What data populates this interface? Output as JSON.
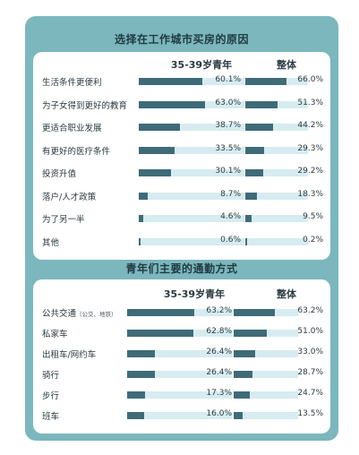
{
  "chart_data": [
    {
      "type": "bar",
      "title": "选择在工作城市买房的原因",
      "series": [
        {
          "name": "35-39岁青年",
          "values": [
            60.1,
            63.0,
            38.7,
            33.5,
            30.1,
            8.7,
            4.6,
            0.6
          ]
        },
        {
          "name": "整体",
          "values": [
            66.0,
            51.3,
            44.2,
            29.3,
            29.2,
            18.3,
            9.5,
            0.2
          ]
        }
      ],
      "categories": [
        "生活条件更便利",
        "为子女得到更好的教育",
        "更适合职业发展",
        "有更好的医疗条件",
        "投资升值",
        "落户/人才政策",
        "为了另一半",
        "其他"
      ],
      "value_labels": [
        [
          "60.1%",
          "63.0%",
          "38.7%",
          "33.5%",
          "30.1%",
          "8.7%",
          "4.6%",
          "0.6%"
        ],
        [
          "66.0%",
          "51.3%",
          "44.2%",
          "29.3%",
          "29.2%",
          "18.3%",
          "9.5%",
          "0.2%"
        ]
      ],
      "unit": "%",
      "ylim": [
        0,
        100
      ]
    },
    {
      "type": "bar",
      "title": "青年们主要的通勤方式",
      "series": [
        {
          "name": "35-39岁青年",
          "values": [
            63.2,
            62.8,
            26.4,
            26.4,
            17.3,
            16.0
          ]
        },
        {
          "name": "整体",
          "values": [
            63.2,
            51.0,
            33.0,
            28.7,
            24.7,
            13.5
          ]
        }
      ],
      "categories": [
        "公共交通",
        "私家车",
        "出租车/网约车",
        "骑行",
        "步行",
        "班车"
      ],
      "category_notes": [
        "（公交、地铁）",
        "",
        "",
        "",
        "",
        ""
      ],
      "value_labels": [
        [
          "63.2%",
          "62.8%",
          "26.4%",
          "26.4%",
          "17.3%",
          "16.0%"
        ],
        [
          "63.2%",
          "51.0%",
          "33.0%",
          "28.7%",
          "24.7%",
          "13.5%"
        ]
      ],
      "unit": "%",
      "ylim": [
        0,
        100
      ]
    }
  ],
  "colors": {
    "frame": "#7bb7bd",
    "bar_fill": "#3f6b78",
    "bar_track": "#d6ecf0"
  }
}
